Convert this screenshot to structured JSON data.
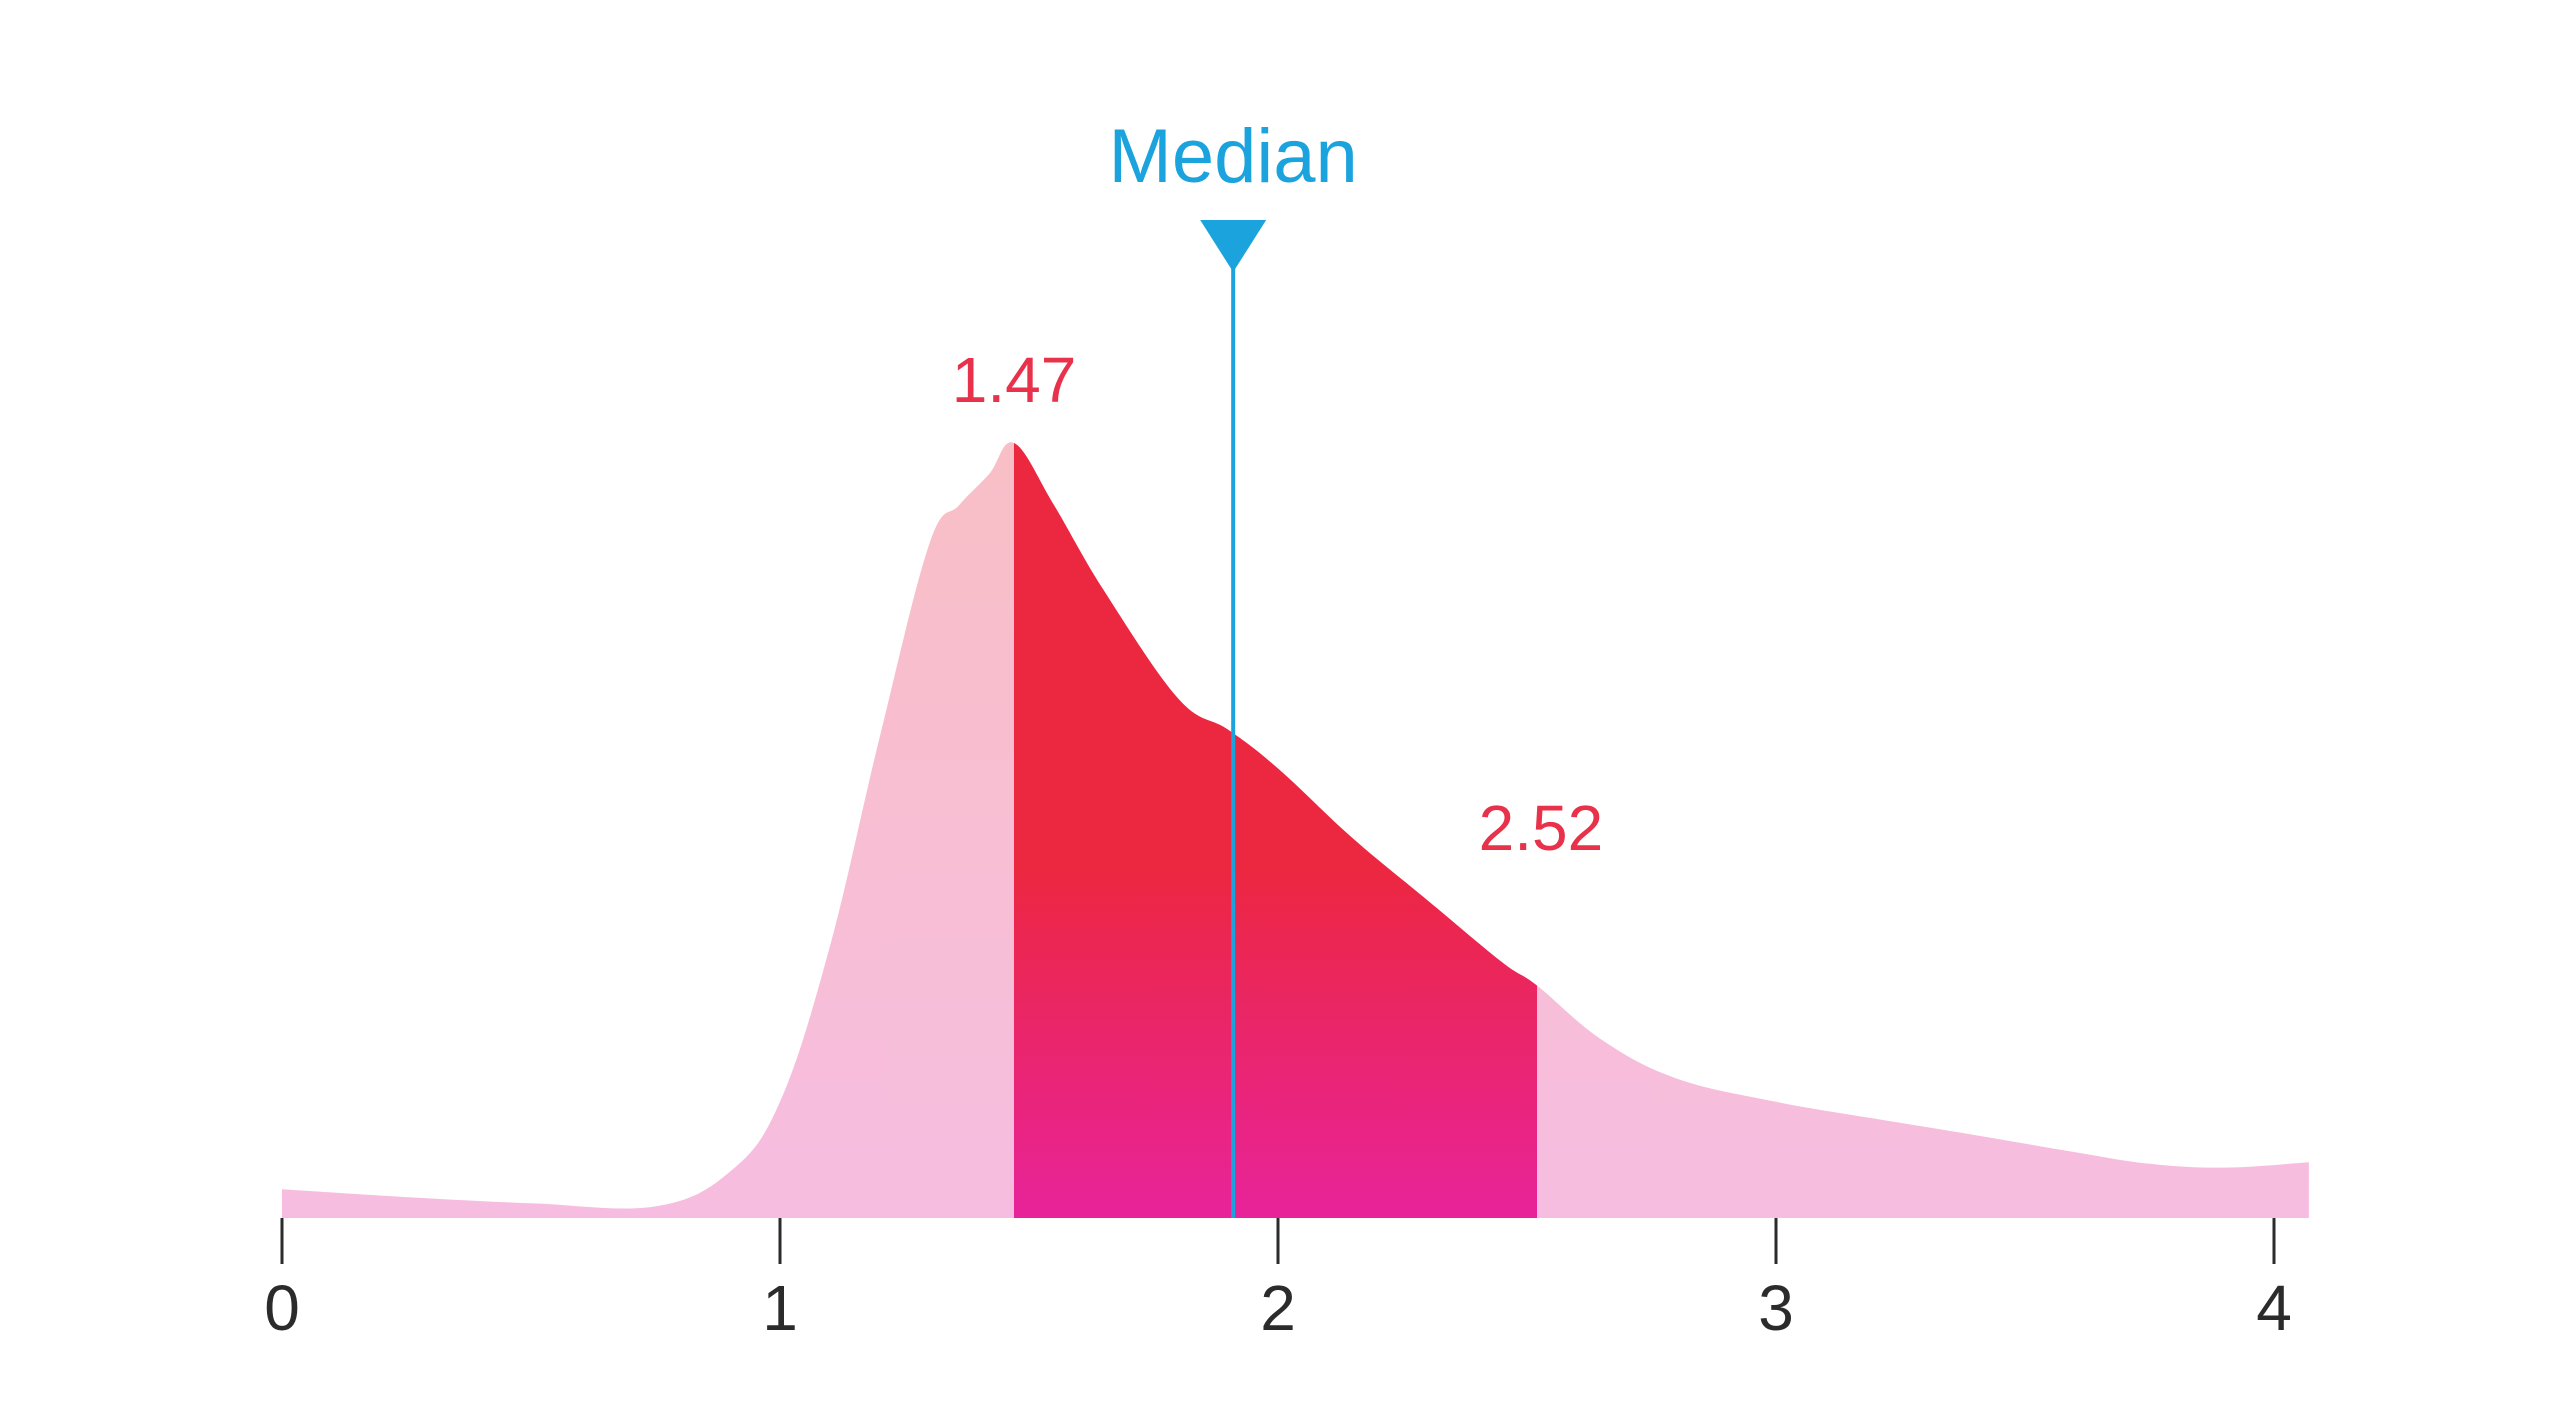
{
  "chart_data": {
    "type": "area",
    "title": "",
    "xlabel": "",
    "ylabel": "",
    "xlim": [
      0,
      4
    ],
    "ylim": [
      0,
      1
    ],
    "grid": false,
    "x_ticks": [
      0,
      1,
      2,
      3,
      4
    ],
    "x_tick_labels": [
      "0",
      "1",
      "2",
      "3",
      "4"
    ],
    "curve": {
      "x": [
        0.0,
        0.25,
        0.5,
        0.75,
        0.9,
        1.0,
        1.1,
        1.2,
        1.3,
        1.36,
        1.42,
        1.47,
        1.55,
        1.65,
        1.8,
        1.9,
        2.0,
        2.15,
        2.3,
        2.45,
        2.52,
        2.65,
        2.8,
        3.0,
        3.2,
        3.4,
        3.6,
        3.75,
        3.9,
        4.07
      ],
      "y": [
        0.037,
        0.027,
        0.019,
        0.015,
        0.06,
        0.15,
        0.35,
        0.62,
        0.87,
        0.92,
        0.96,
        1.0,
        0.92,
        0.81,
        0.67,
        0.63,
        0.58,
        0.49,
        0.41,
        0.33,
        0.3,
        0.23,
        0.18,
        0.15,
        0.128,
        0.107,
        0.085,
        0.07,
        0.065,
        0.072
      ]
    },
    "highlight": {
      "from": 1.47,
      "to": 2.52,
      "from_label": "1.47",
      "to_label": "2.52"
    },
    "median": {
      "x": 1.91,
      "label": "Median"
    },
    "colors": {
      "light_fill_top": "#f8bfc6",
      "light_fill_bottom": "#f7bde0",
      "highlight_fill_top": "#ec2740",
      "highlight_fill_bottom": "#e8239a",
      "highlight_label": "#e8314a",
      "median": "#1ba3de",
      "axis": "#2b2b2b"
    }
  }
}
